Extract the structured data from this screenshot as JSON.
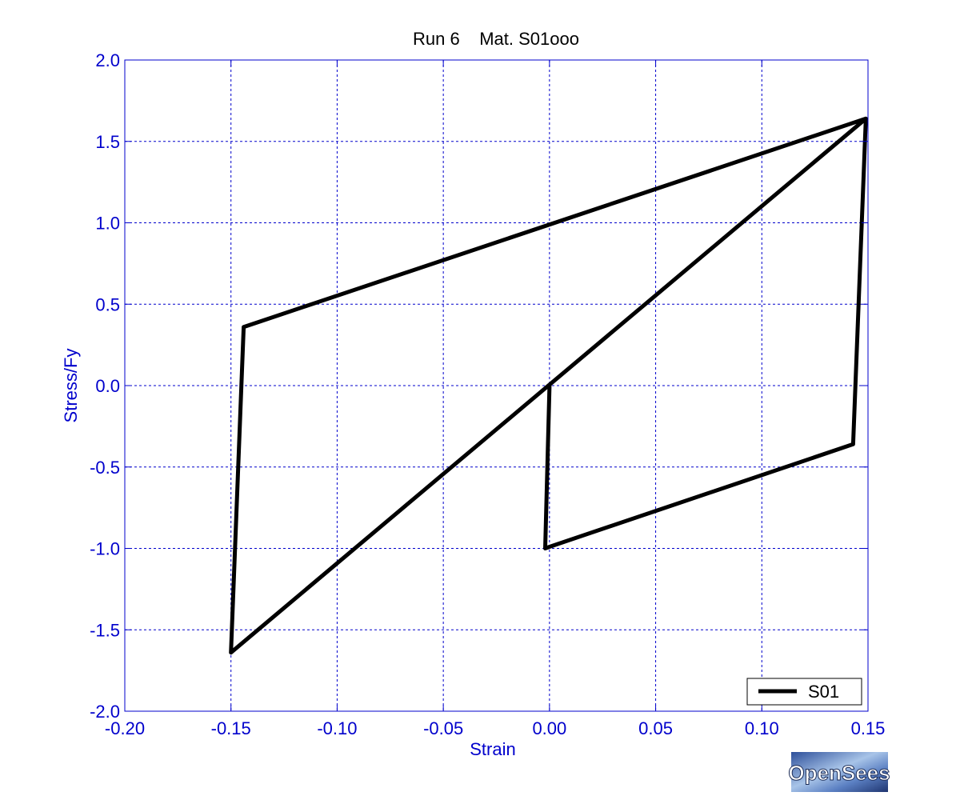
{
  "chart_data": {
    "type": "line",
    "title": "Run 6    Mat. S01ooo",
    "xlabel": "Strain",
    "ylabel": "Stress/Fy",
    "xlim": [
      -0.2,
      0.15
    ],
    "ylim": [
      -2.0,
      2.0
    ],
    "xticks": [
      -0.2,
      -0.15,
      -0.1,
      -0.05,
      0.0,
      0.05,
      0.1,
      0.15
    ],
    "yticks": [
      -2.0,
      -1.5,
      -1.0,
      -0.5,
      0.0,
      0.5,
      1.0,
      1.5,
      2.0
    ],
    "xtick_labels": [
      "-0.20",
      "-0.15",
      "-0.10",
      "-0.05",
      "0.00",
      "0.05",
      "0.10",
      "0.15"
    ],
    "ytick_labels": [
      "-2.0",
      "-1.5",
      "-1.0",
      "-0.5",
      "0.0",
      "0.5",
      "1.0",
      "1.5",
      "2.0"
    ],
    "grid": true,
    "legend": "bottom-right",
    "series": [
      {
        "name": "S01",
        "color": "#000000",
        "x": [
          0.0,
          -0.002,
          0.0,
          0.143,
          0.149,
          -0.15,
          -0.144,
          0.149
        ],
        "y": [
          0.0,
          -1.0,
          -0.99,
          -0.36,
          1.64,
          -1.64,
          0.36,
          1.64
        ]
      }
    ]
  },
  "logo": {
    "text": "OpenSees"
  },
  "colors": {
    "axis": "#0000cc",
    "grid": "#0000cc",
    "line": "#000000"
  }
}
